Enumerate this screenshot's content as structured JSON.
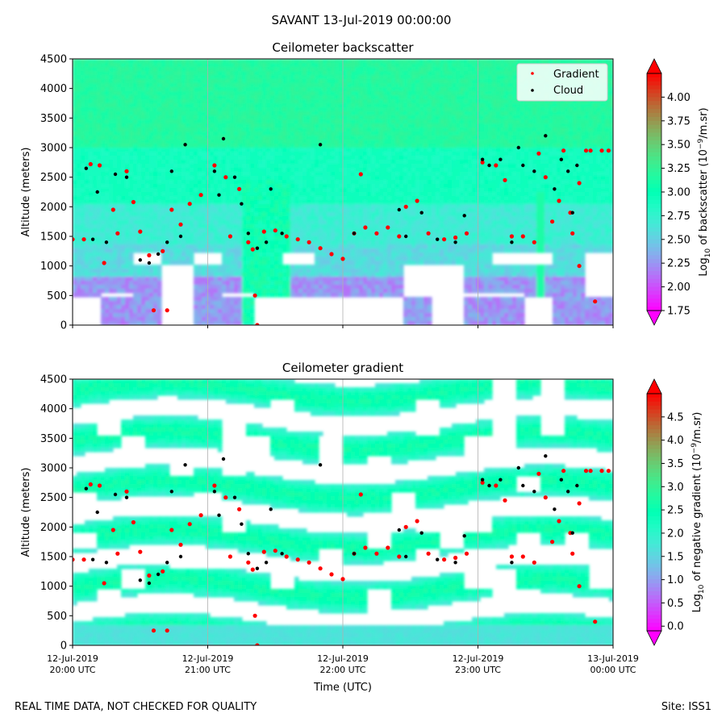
{
  "figure": {
    "suptitle": "SAVANT 13-Jul-2019 00:00:00",
    "footer_left": "REAL TIME DATA, NOT CHECKED FOR QUALITY",
    "footer_right": "Site: ISS1"
  },
  "chart_data": [
    {
      "type": "heatmap",
      "title": "Ceilometer backscatter",
      "xlabel": "",
      "ylabel": "Altitude (meters)",
      "ylim": [
        0,
        4500
      ],
      "yticks": [
        0,
        500,
        1000,
        1500,
        2000,
        2500,
        3000,
        3500,
        4000,
        4500
      ],
      "xlim": [
        "2019-07-12 20:00",
        "2019-07-13 00:00"
      ],
      "grid": "vertical lines at hourly ticks",
      "colorbar": {
        "label": "Log10 of backscatter (10⁻⁹/m.sr)",
        "label_parts": [
          "Log",
          "10",
          " of backscatter (10",
          "−9",
          "/m.sr)"
        ],
        "range": [
          1.75,
          4.25
        ],
        "ticks": [
          "1.75",
          "2.00",
          "2.25",
          "2.50",
          "2.75",
          "3.00",
          "3.25",
          "3.50",
          "3.75",
          "4.00"
        ],
        "colormap": "rainbow",
        "extend": "both"
      },
      "legend": {
        "position": "top-right",
        "entries": [
          {
            "label": "Gradient",
            "color": "#ff0000",
            "marker": "dot"
          },
          {
            "label": "Cloud",
            "color": "#000000",
            "marker": "dot"
          }
        ]
      },
      "series": [
        {
          "name": "Gradient",
          "color": "#ff0000",
          "points": [
            [
              "2019-07-12 20:00",
              1450
            ],
            [
              "2019-07-12 20:05",
              1450
            ],
            [
              "2019-07-12 20:08",
              2720
            ],
            [
              "2019-07-12 20:12",
              2700
            ],
            [
              "2019-07-12 20:14",
              1050
            ],
            [
              "2019-07-12 20:18",
              1950
            ],
            [
              "2019-07-12 20:20",
              1550
            ],
            [
              "2019-07-12 20:24",
              2600
            ],
            [
              "2019-07-12 20:27",
              2080
            ],
            [
              "2019-07-12 20:30",
              1580
            ],
            [
              "2019-07-12 20:34",
              1180
            ],
            [
              "2019-07-12 20:36",
              250
            ],
            [
              "2019-07-12 20:40",
              1250
            ],
            [
              "2019-07-12 20:42",
              250
            ],
            [
              "2019-07-12 20:44",
              1950
            ],
            [
              "2019-07-12 20:48",
              1700
            ],
            [
              "2019-07-12 20:52",
              2050
            ],
            [
              "2019-07-12 20:57",
              2200
            ],
            [
              "2019-07-12 21:03",
              2700
            ],
            [
              "2019-07-12 21:08",
              2500
            ],
            [
              "2019-07-12 21:10",
              1500
            ],
            [
              "2019-07-12 21:14",
              2300
            ],
            [
              "2019-07-12 21:18",
              1400
            ],
            [
              "2019-07-12 21:20",
              1280
            ],
            [
              "2019-07-12 21:21",
              500
            ],
            [
              "2019-07-12 21:22",
              0
            ],
            [
              "2019-07-12 21:25",
              1580
            ],
            [
              "2019-07-12 21:30",
              1600
            ],
            [
              "2019-07-12 21:35",
              1500
            ],
            [
              "2019-07-12 21:40",
              1450
            ],
            [
              "2019-07-12 21:45",
              1400
            ],
            [
              "2019-07-12 21:50",
              1300
            ],
            [
              "2019-07-12 21:55",
              1200
            ],
            [
              "2019-07-12 22:00",
              1120
            ],
            [
              "2019-07-12 22:05",
              1550
            ],
            [
              "2019-07-12 22:08",
              2550
            ],
            [
              "2019-07-12 22:10",
              1650
            ],
            [
              "2019-07-12 22:15",
              1550
            ],
            [
              "2019-07-12 22:20",
              1650
            ],
            [
              "2019-07-12 22:25",
              1500
            ],
            [
              "2019-07-12 22:28",
              2000
            ],
            [
              "2019-07-12 22:33",
              2100
            ],
            [
              "2019-07-12 22:38",
              1550
            ],
            [
              "2019-07-12 22:45",
              1450
            ],
            [
              "2019-07-12 22:50",
              1480
            ],
            [
              "2019-07-12 22:55",
              1550
            ],
            [
              "2019-07-12 23:02",
              2750
            ],
            [
              "2019-07-12 23:08",
              2700
            ],
            [
              "2019-07-12 23:12",
              2450
            ],
            [
              "2019-07-12 23:15",
              1500
            ],
            [
              "2019-07-12 23:20",
              1500
            ],
            [
              "2019-07-12 23:25",
              1400
            ],
            [
              "2019-07-12 23:27",
              2900
            ],
            [
              "2019-07-12 23:30",
              2500
            ],
            [
              "2019-07-12 23:33",
              1750
            ],
            [
              "2019-07-12 23:36",
              2100
            ],
            [
              "2019-07-12 23:38",
              2950
            ],
            [
              "2019-07-12 23:41",
              1900
            ],
            [
              "2019-07-12 23:42",
              1550
            ],
            [
              "2019-07-12 23:45",
              2400
            ],
            [
              "2019-07-12 23:45",
              1000
            ],
            [
              "2019-07-12 23:48",
              2950
            ],
            [
              "2019-07-12 23:50",
              2950
            ],
            [
              "2019-07-12 23:52",
              400
            ],
            [
              "2019-07-12 23:55",
              2950
            ],
            [
              "2019-07-12 23:58",
              2950
            ]
          ]
        },
        {
          "name": "Cloud",
          "color": "#000000",
          "points": [
            [
              "2019-07-12 20:06",
              2650
            ],
            [
              "2019-07-12 20:09",
              1450
            ],
            [
              "2019-07-12 20:11",
              2250
            ],
            [
              "2019-07-12 20:15",
              1400
            ],
            [
              "2019-07-12 20:19",
              2550
            ],
            [
              "2019-07-12 20:24",
              2500
            ],
            [
              "2019-07-12 20:30",
              1100
            ],
            [
              "2019-07-12 20:34",
              1050
            ],
            [
              "2019-07-12 20:38",
              1200
            ],
            [
              "2019-07-12 20:42",
              1400
            ],
            [
              "2019-07-12 20:44",
              2600
            ],
            [
              "2019-07-12 20:48",
              1500
            ],
            [
              "2019-07-12 20:50",
              3050
            ],
            [
              "2019-07-12 21:03",
              2600
            ],
            [
              "2019-07-12 21:05",
              2200
            ],
            [
              "2019-07-12 21:07",
              3150
            ],
            [
              "2019-07-12 21:12",
              2500
            ],
            [
              "2019-07-12 21:15",
              2050
            ],
            [
              "2019-07-12 21:18",
              1550
            ],
            [
              "2019-07-12 21:22",
              1300
            ],
            [
              "2019-07-12 21:26",
              1400
            ],
            [
              "2019-07-12 21:28",
              2300
            ],
            [
              "2019-07-12 21:33",
              1550
            ],
            [
              "2019-07-12 21:50",
              3050
            ],
            [
              "2019-07-12 22:05",
              1550
            ],
            [
              "2019-07-12 22:25",
              1950
            ],
            [
              "2019-07-12 22:28",
              1500
            ],
            [
              "2019-07-12 22:35",
              1900
            ],
            [
              "2019-07-12 22:42",
              1450
            ],
            [
              "2019-07-12 22:50",
              1400
            ],
            [
              "2019-07-12 22:54",
              1850
            ],
            [
              "2019-07-12 23:02",
              2800
            ],
            [
              "2019-07-12 23:05",
              2700
            ],
            [
              "2019-07-12 23:10",
              2800
            ],
            [
              "2019-07-12 23:15",
              1400
            ],
            [
              "2019-07-12 23:18",
              3000
            ],
            [
              "2019-07-12 23:20",
              2700
            ],
            [
              "2019-07-12 23:25",
              2600
            ],
            [
              "2019-07-12 23:30",
              3200
            ],
            [
              "2019-07-12 23:34",
              2300
            ],
            [
              "2019-07-12 23:37",
              2800
            ],
            [
              "2019-07-12 23:40",
              2600
            ],
            [
              "2019-07-12 23:42",
              1900
            ],
            [
              "2019-07-12 23:44",
              2700
            ]
          ]
        }
      ]
    },
    {
      "type": "heatmap",
      "title": "Ceilometer gradient",
      "xlabel": "Time (UTC)",
      "ylabel": "Altitude (meters)",
      "ylim": [
        0,
        4500
      ],
      "yticks": [
        0,
        500,
        1000,
        1500,
        2000,
        2500,
        3000,
        3500,
        4000,
        4500
      ],
      "xlim": [
        "2019-07-12 20:00",
        "2019-07-13 00:00"
      ],
      "xticks": [
        {
          "line1": "12-Jul-2019",
          "line2": "20:00 UTC"
        },
        {
          "line1": "12-Jul-2019",
          "line2": "21:00 UTC"
        },
        {
          "line1": "12-Jul-2019",
          "line2": "22:00 UTC"
        },
        {
          "line1": "12-Jul-2019",
          "line2": "23:00 UTC"
        },
        {
          "line1": "13-Jul-2019",
          "line2": "00:00 UTC"
        }
      ],
      "grid": "vertical lines at hourly ticks",
      "colorbar": {
        "label": "Log10 of negative gradient (10⁻⁹/m.sr)",
        "label_parts": [
          "Log",
          "10",
          " of negative gradient (10",
          "−9",
          "/m.sr)"
        ],
        "range": [
          -0.1,
          5.0
        ],
        "ticks": [
          "0.0",
          "0.5",
          "1.0",
          "1.5",
          "2.0",
          "2.5",
          "3.0",
          "3.5",
          "4.0",
          "4.5"
        ],
        "colormap": "rainbow",
        "extend": "both"
      },
      "series_note": "Gradient and Cloud points are the same as in the backscatter panel"
    }
  ]
}
